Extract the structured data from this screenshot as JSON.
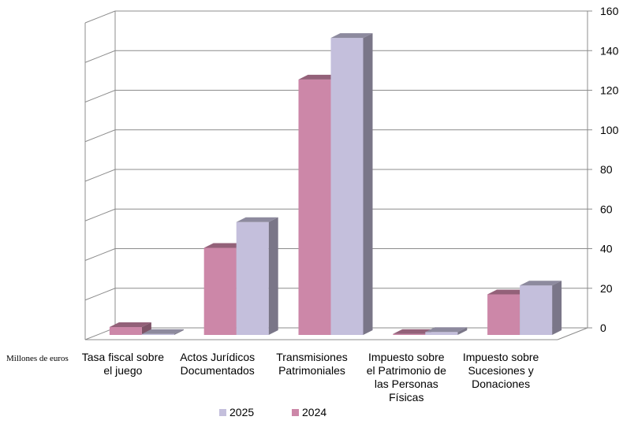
{
  "chart_data": {
    "type": "bar",
    "subtype": "3d-clustered-column",
    "unit_label": "Millones de euros",
    "categories": [
      [
        "Tasa fiscal sobre",
        "el juego"
      ],
      [
        "Actos Jurídicos",
        "Documentados"
      ],
      [
        "Transmisiones",
        "Patrimoniales"
      ],
      [
        "Impuesto sobre",
        "el Patrimonio de",
        "las Personas",
        "Físicas"
      ],
      [
        "Impuesto sobre",
        "Sucesiones y",
        "Donaciones"
      ]
    ],
    "series": [
      {
        "name": "2024",
        "color": "#cc87a8",
        "values": [
          4,
          44,
          129,
          0.5,
          20.5
        ]
      },
      {
        "name": "2025",
        "color": "#c4bfdc",
        "values": [
          0.5,
          57,
          150,
          1.5,
          25
        ]
      }
    ],
    "yticks": [
      0,
      20,
      40,
      60,
      80,
      100,
      120,
      140,
      160
    ],
    "ylim": [
      0,
      160
    ],
    "y_axis_position": "right",
    "grid": true,
    "legend_position": "bottom",
    "legend_order": [
      "2025",
      "2024"
    ]
  }
}
